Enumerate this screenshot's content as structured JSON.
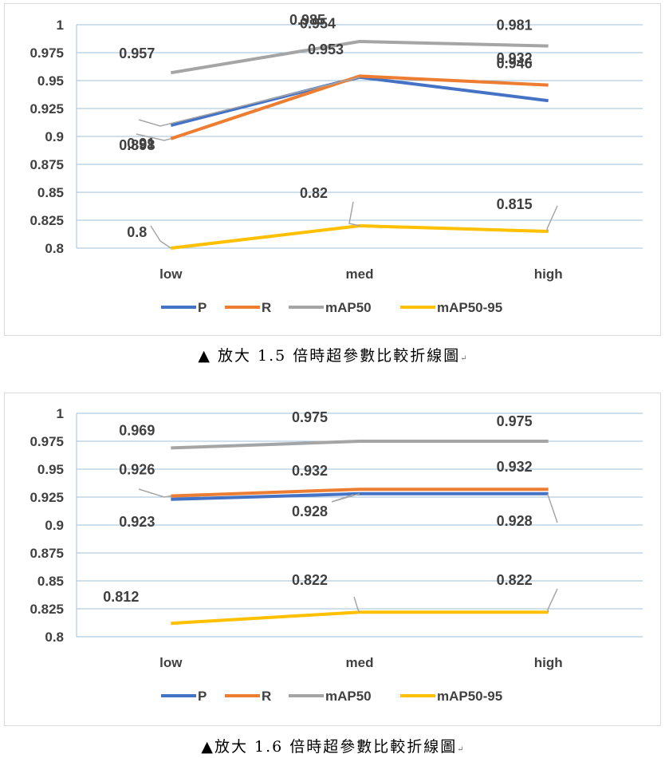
{
  "charts": [
    {
      "caption": "▲ 放大 1.5 倍時超參數比較折線圖",
      "return_mark": "↵"
    },
    {
      "caption": "▲放大 1.6 倍時超參數比較折線圖",
      "return_mark": "↵"
    }
  ],
  "chart_data": [
    {
      "type": "line",
      "title": "",
      "categories": [
        "low",
        "med",
        "high"
      ],
      "ylim": [
        0.8,
        1
      ],
      "yticks": [
        "0.8",
        "0.825",
        "0.85",
        "0.875",
        "0.9",
        "0.925",
        "0.95",
        "0.975",
        "1"
      ],
      "grid": true,
      "legend": "bottom",
      "series": [
        {
          "name": "P",
          "color": "#4472c4",
          "values": [
            0.91,
            0.953,
            0.932
          ],
          "labels": [
            "0.91",
            "0.953",
            "0.932"
          ]
        },
        {
          "name": "R",
          "color": "#ed7d31",
          "values": [
            0.898,
            0.954,
            0.946
          ],
          "labels": [
            "0.898",
            "0.954",
            "0.946"
          ]
        },
        {
          "name": "mAP50",
          "color": "#a5a5a5",
          "values": [
            0.957,
            0.985,
            0.981
          ],
          "labels": [
            "0.957",
            "0.985",
            "0.981"
          ]
        },
        {
          "name": "mAP50-95",
          "color": "#ffc000",
          "values": [
            0.8,
            0.82,
            0.815
          ],
          "labels": [
            "0.8",
            "0.82",
            "0.815"
          ]
        }
      ]
    },
    {
      "type": "line",
      "title": "",
      "categories": [
        "low",
        "med",
        "high"
      ],
      "ylim": [
        0.8,
        1
      ],
      "yticks": [
        "0.8",
        "0.825",
        "0.85",
        "0.875",
        "0.9",
        "0.925",
        "0.95",
        "0.975",
        "1"
      ],
      "grid": true,
      "legend": "bottom",
      "series": [
        {
          "name": "P",
          "color": "#4472c4",
          "values": [
            0.923,
            0.928,
            0.928
          ],
          "labels": [
            "0.923",
            "0.928",
            "0.928"
          ]
        },
        {
          "name": "R",
          "color": "#ed7d31",
          "values": [
            0.926,
            0.932,
            0.932
          ],
          "labels": [
            "0.926",
            "0.932",
            "0.932"
          ]
        },
        {
          "name": "mAP50",
          "color": "#a5a5a5",
          "values": [
            0.969,
            0.975,
            0.975
          ],
          "labels": [
            "0.969",
            "0.975",
            "0.975"
          ]
        },
        {
          "name": "mAP50-95",
          "color": "#ffc000",
          "values": [
            0.812,
            0.822,
            0.822
          ],
          "labels": [
            "0.812",
            "0.822",
            "0.822"
          ]
        }
      ]
    }
  ]
}
